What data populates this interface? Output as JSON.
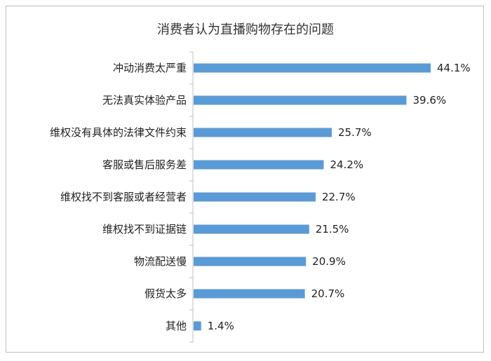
{
  "chart_data": {
    "type": "bar",
    "orientation": "horizontal",
    "title": "消费者认为直播购物存在的问题",
    "xlabel": "",
    "ylabel": "",
    "xlim": [
      0,
      44.1
    ],
    "grid": false,
    "legend": "none",
    "categories": [
      "冲动消费太严重",
      "无法真实体验产品",
      "维权没有具体的法律文件约束",
      "客服或售后服务差",
      "维权找不到客服或者经营者",
      "维权找不到证据链",
      "物流配送慢",
      "假货太多",
      "其他"
    ],
    "values": [
      44.1,
      39.6,
      25.7,
      24.2,
      22.7,
      21.5,
      20.9,
      20.7,
      1.4
    ],
    "labels": [
      "44.1%",
      "39.6%",
      "25.7%",
      "24.2%",
      "22.7%",
      "21.5%",
      "20.9%",
      "20.7%",
      "1.4%"
    ],
    "bar_color": "#5b9bd5",
    "axis_color": "#bfbfbf"
  }
}
